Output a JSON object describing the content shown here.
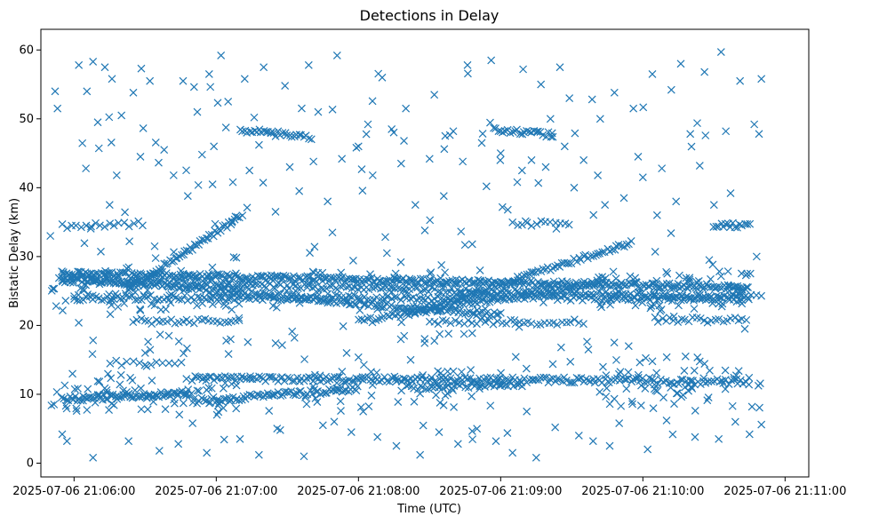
{
  "chart_data": {
    "type": "scatter",
    "title": "Detections in Delay",
    "xlabel": "Time (UTC)",
    "ylabel": "Bistatic Delay (km)",
    "marker": "x",
    "color": "#1f77b4",
    "grid": false,
    "legend": false,
    "x_axis": {
      "type": "time",
      "range": [
        "2025-07-06 21:05:46",
        "2025-07-06 21:11:10"
      ],
      "ticks": [
        "2025-07-06 21:06:00",
        "2025-07-06 21:07:00",
        "2025-07-06 21:08:00",
        "2025-07-06 21:09:00",
        "2025-07-06 21:10:00",
        "2025-07-06 21:11:00"
      ]
    },
    "y_axis": {
      "range": [
        -2,
        63
      ],
      "ticks": [
        0,
        10,
        20,
        30,
        40,
        50,
        60
      ]
    },
    "tracks": [
      {
        "label": "rising",
        "start": [
          "2025-07-06 21:06:22",
          25.0
        ],
        "end": [
          "2025-07-06 21:07:11",
          36.0
        ],
        "step_seconds": 0.8
      },
      {
        "label": "rising",
        "start": [
          "2025-07-06 21:08:20",
          21.5
        ],
        "end": [
          "2025-07-06 21:09:55",
          32.0
        ],
        "step_seconds": 1.0
      },
      {
        "label": "near-flat",
        "start": [
          "2025-07-06 21:05:55",
          27.5
        ],
        "end": [
          "2025-07-06 21:10:45",
          25.5
        ],
        "step_seconds": 0.8
      },
      {
        "label": "near-flat",
        "start": [
          "2025-07-06 21:05:55",
          26.5
        ],
        "end": [
          "2025-07-06 21:10:45",
          24.0
        ],
        "step_seconds": 1.2
      },
      {
        "label": "falling",
        "start": [
          "2025-07-06 21:05:55",
          27.0
        ],
        "end": [
          "2025-07-06 21:09:00",
          21.5
        ],
        "step_seconds": 1.0
      },
      {
        "label": "rising",
        "start": [
          "2025-07-06 21:08:00",
          20.5
        ],
        "end": [
          "2025-07-06 21:09:45",
          26.5
        ],
        "step_seconds": 1.2
      },
      {
        "label": "flat",
        "start": [
          "2025-07-06 21:06:00",
          24.0
        ],
        "end": [
          "2025-07-06 21:10:45",
          24.0
        ],
        "step_seconds": 1.3
      },
      {
        "label": "flat",
        "start": [
          "2025-07-06 21:05:55",
          9.3
        ],
        "end": [
          "2025-07-06 21:06:50",
          10.2
        ],
        "step_seconds": 0.8
      },
      {
        "label": "rising",
        "start": [
          "2025-07-06 21:06:50",
          9.0
        ],
        "end": [
          "2025-07-06 21:08:00",
          10.8
        ],
        "step_seconds": 0.9
      },
      {
        "label": "flat",
        "start": [
          "2025-07-06 21:06:50",
          12.3
        ],
        "end": [
          "2025-07-06 21:10:05",
          12.0
        ],
        "step_seconds": 1.0
      },
      {
        "label": "flat",
        "start": [
          "2025-07-06 21:08:20",
          11.0
        ],
        "end": [
          "2025-07-06 21:09:10",
          11.5
        ],
        "step_seconds": 1.2
      },
      {
        "label": "flat",
        "start": [
          "2025-07-06 21:10:05",
          11.8
        ],
        "end": [
          "2025-07-06 21:10:45",
          11.8
        ],
        "step_seconds": 1.2
      },
      {
        "label": "flat",
        "start": [
          "2025-07-06 21:07:10",
          48.3
        ],
        "end": [
          "2025-07-06 21:07:40",
          47.4
        ],
        "step_seconds": 1.0
      },
      {
        "label": "flat",
        "start": [
          "2025-07-06 21:08:57",
          48.5
        ],
        "end": [
          "2025-07-06 21:09:22",
          47.6
        ],
        "step_seconds": 1.0
      },
      {
        "label": "flat",
        "start": [
          "2025-07-06 21:06:25",
          20.6
        ],
        "end": [
          "2025-07-06 21:07:10",
          20.6
        ],
        "step_seconds": 1.6
      },
      {
        "label": "flat",
        "start": [
          "2025-07-06 21:08:30",
          20.5
        ],
        "end": [
          "2025-07-06 21:09:35",
          20.5
        ],
        "step_seconds": 1.8
      },
      {
        "label": "flat",
        "start": [
          "2025-07-06 21:10:05",
          20.8
        ],
        "end": [
          "2025-07-06 21:10:45",
          20.8
        ],
        "step_seconds": 1.6
      },
      {
        "label": "flat",
        "start": [
          "2025-07-06 21:05:55",
          34.5
        ],
        "end": [
          "2025-07-06 21:06:30",
          34.8
        ],
        "step_seconds": 2.0
      },
      {
        "label": "flat",
        "start": [
          "2025-07-06 21:09:05",
          34.8
        ],
        "end": [
          "2025-07-06 21:09:30",
          34.8
        ],
        "step_seconds": 2.0
      },
      {
        "label": "flat",
        "start": [
          "2025-07-06 21:10:30",
          34.6
        ],
        "end": [
          "2025-07-06 21:10:45",
          34.6
        ],
        "step_seconds": 1.0
      },
      {
        "label": "flat",
        "start": [
          "2025-07-06 21:06:15",
          14.5
        ],
        "end": [
          "2025-07-06 21:06:45",
          14.5
        ],
        "step_seconds": 2.5
      }
    ],
    "scatter_points": [
      [
        "2025-07-06 21:05:50",
        33
      ],
      [
        "2025-07-06 21:05:52",
        54
      ],
      [
        "2025-07-06 21:05:53",
        51.5
      ],
      [
        "2025-07-06 21:05:55",
        4.2
      ],
      [
        "2025-07-06 21:05:57",
        3.2
      ],
      [
        "2025-07-06 21:06:02",
        57.8
      ],
      [
        "2025-07-06 21:06:05",
        42.8
      ],
      [
        "2025-07-06 21:06:08",
        58.3
      ],
      [
        "2025-07-06 21:06:08",
        0.8
      ],
      [
        "2025-07-06 21:06:10",
        49.5
      ],
      [
        "2025-07-06 21:06:13",
        57.5
      ],
      [
        "2025-07-06 21:06:15",
        37.5
      ],
      [
        "2025-07-06 21:06:16",
        55.8
      ],
      [
        "2025-07-06 21:06:18",
        41.8
      ],
      [
        "2025-07-06 21:06:20",
        50.5
      ],
      [
        "2025-07-06 21:06:23",
        3.2
      ],
      [
        "2025-07-06 21:06:25",
        53.8
      ],
      [
        "2025-07-06 21:06:28",
        44.5
      ],
      [
        "2025-07-06 21:06:30",
        16.0
      ],
      [
        "2025-07-06 21:06:32",
        55.5
      ],
      [
        "2025-07-06 21:06:34",
        31.5
      ],
      [
        "2025-07-06 21:06:36",
        1.8
      ],
      [
        "2025-07-06 21:06:38",
        45.5
      ],
      [
        "2025-07-06 21:06:40",
        18.5
      ],
      [
        "2025-07-06 21:06:42",
        41.8
      ],
      [
        "2025-07-06 21:06:44",
        2.8
      ],
      [
        "2025-07-06 21:06:46",
        55.5
      ],
      [
        "2025-07-06 21:06:48",
        38.8
      ],
      [
        "2025-07-06 21:06:50",
        5.8
      ],
      [
        "2025-07-06 21:06:52",
        51.0
      ],
      [
        "2025-07-06 21:06:54",
        44.8
      ],
      [
        "2025-07-06 21:06:56",
        1.5
      ],
      [
        "2025-07-06 21:06:57",
        56.5
      ],
      [
        "2025-07-06 21:06:59",
        46.0
      ],
      [
        "2025-07-06 21:07:02",
        59.2
      ],
      [
        "2025-07-06 21:07:03",
        8.0
      ],
      [
        "2025-07-06 21:07:05",
        52.5
      ],
      [
        "2025-07-06 21:07:07",
        40.8
      ],
      [
        "2025-07-06 21:07:10",
        3.5
      ],
      [
        "2025-07-06 21:07:12",
        55.8
      ],
      [
        "2025-07-06 21:07:14",
        42.5
      ],
      [
        "2025-07-06 21:07:16",
        50.2
      ],
      [
        "2025-07-06 21:07:18",
        1.2
      ],
      [
        "2025-07-06 21:07:20",
        57.5
      ],
      [
        "2025-07-06 21:07:23",
        48.0
      ],
      [
        "2025-07-06 21:07:25",
        36.5
      ],
      [
        "2025-07-06 21:07:27",
        4.8
      ],
      [
        "2025-07-06 21:07:29",
        54.8
      ],
      [
        "2025-07-06 21:07:31",
        43.0
      ],
      [
        "2025-07-06 21:07:33",
        18.2
      ],
      [
        "2025-07-06 21:07:35",
        39.5
      ],
      [
        "2025-07-06 21:07:37",
        1.0
      ],
      [
        "2025-07-06 21:07:39",
        57.8
      ],
      [
        "2025-07-06 21:07:41",
        43.8
      ],
      [
        "2025-07-06 21:07:43",
        51.0
      ],
      [
        "2025-07-06 21:07:45",
        5.5
      ],
      [
        "2025-07-06 21:07:47",
        38.0
      ],
      [
        "2025-07-06 21:07:49",
        33.5
      ],
      [
        "2025-07-06 21:07:51",
        59.2
      ],
      [
        "2025-07-06 21:07:53",
        44.2
      ],
      [
        "2025-07-06 21:07:55",
        16.0
      ],
      [
        "2025-07-06 21:07:57",
        4.5
      ],
      [
        "2025-07-06 21:08:00",
        46.0
      ],
      [
        "2025-07-06 21:08:02",
        7.5
      ],
      [
        "2025-07-06 21:08:04",
        49.2
      ],
      [
        "2025-07-06 21:08:06",
        41.8
      ],
      [
        "2025-07-06 21:08:08",
        3.8
      ],
      [
        "2025-07-06 21:08:10",
        56.0
      ],
      [
        "2025-07-06 21:08:12",
        30.5
      ],
      [
        "2025-07-06 21:08:14",
        48.5
      ],
      [
        "2025-07-06 21:08:16",
        2.5
      ],
      [
        "2025-07-06 21:08:18",
        43.5
      ],
      [
        "2025-07-06 21:08:20",
        51.5
      ],
      [
        "2025-07-06 21:08:22",
        15.0
      ],
      [
        "2025-07-06 21:08:24",
        37.5
      ],
      [
        "2025-07-06 21:08:26",
        1.2
      ],
      [
        "2025-07-06 21:08:28",
        33.8
      ],
      [
        "2025-07-06 21:08:30",
        44.2
      ],
      [
        "2025-07-06 21:08:32",
        53.5
      ],
      [
        "2025-07-06 21:08:34",
        4.5
      ],
      [
        "2025-07-06 21:08:36",
        38.8
      ],
      [
        "2025-07-06 21:08:38",
        18.8
      ],
      [
        "2025-07-06 21:08:40",
        48.2
      ],
      [
        "2025-07-06 21:08:42",
        2.8
      ],
      [
        "2025-07-06 21:08:44",
        43.8
      ],
      [
        "2025-07-06 21:08:46",
        57.8
      ],
      [
        "2025-07-06 21:08:48",
        31.8
      ],
      [
        "2025-07-06 21:08:50",
        5.0
      ],
      [
        "2025-07-06 21:08:52",
        46.5
      ],
      [
        "2025-07-06 21:08:54",
        40.2
      ],
      [
        "2025-07-06 21:08:56",
        58.5
      ],
      [
        "2025-07-06 21:08:58",
        3.2
      ],
      [
        "2025-07-06 21:09:00",
        45.0
      ],
      [
        "2025-07-06 21:09:03",
        36.8
      ],
      [
        "2025-07-06 21:09:05",
        1.5
      ],
      [
        "2025-07-06 21:09:07",
        40.8
      ],
      [
        "2025-07-06 21:09:09",
        42.5
      ],
      [
        "2025-07-06 21:09:11",
        7.5
      ],
      [
        "2025-07-06 21:09:13",
        44.0
      ],
      [
        "2025-07-06 21:09:15",
        0.8
      ],
      [
        "2025-07-06 21:09:17",
        55.0
      ],
      [
        "2025-07-06 21:09:19",
        43.0
      ],
      [
        "2025-07-06 21:09:21",
        50.0
      ],
      [
        "2025-07-06 21:09:23",
        5.2
      ],
      [
        "2025-07-06 21:09:25",
        57.5
      ],
      [
        "2025-07-06 21:09:27",
        46.0
      ],
      [
        "2025-07-06 21:09:29",
        53.0
      ],
      [
        "2025-07-06 21:09:31",
        40.0
      ],
      [
        "2025-07-06 21:09:33",
        4.0
      ],
      [
        "2025-07-06 21:09:35",
        44.0
      ],
      [
        "2025-07-06 21:09:37",
        16.5
      ],
      [
        "2025-07-06 21:09:39",
        3.2
      ],
      [
        "2025-07-06 21:09:42",
        50.0
      ],
      [
        "2025-07-06 21:09:44",
        37.5
      ],
      [
        "2025-07-06 21:09:46",
        2.5
      ],
      [
        "2025-07-06 21:09:48",
        53.8
      ],
      [
        "2025-07-06 21:09:50",
        5.8
      ],
      [
        "2025-07-06 21:09:52",
        38.5
      ],
      [
        "2025-07-06 21:09:54",
        17.0
      ],
      [
        "2025-07-06 21:09:56",
        51.5
      ],
      [
        "2025-07-06 21:09:58",
        44.5
      ],
      [
        "2025-07-06 21:10:00",
        41.5
      ],
      [
        "2025-07-06 21:10:02",
        2.0
      ],
      [
        "2025-07-06 21:10:04",
        56.5
      ],
      [
        "2025-07-06 21:10:06",
        36.0
      ],
      [
        "2025-07-06 21:10:08",
        42.8
      ],
      [
        "2025-07-06 21:10:10",
        6.2
      ],
      [
        "2025-07-06 21:10:12",
        54.2
      ],
      [
        "2025-07-06 21:10:14",
        38.0
      ],
      [
        "2025-07-06 21:10:16",
        58.0
      ],
      [
        "2025-07-06 21:10:18",
        15.5
      ],
      [
        "2025-07-06 21:10:20",
        47.8
      ],
      [
        "2025-07-06 21:10:22",
        3.8
      ],
      [
        "2025-07-06 21:10:24",
        43.2
      ],
      [
        "2025-07-06 21:10:26",
        56.8
      ],
      [
        "2025-07-06 21:10:28",
        29.5
      ],
      [
        "2025-07-06 21:10:30",
        37.5
      ],
      [
        "2025-07-06 21:10:32",
        3.5
      ],
      [
        "2025-07-06 21:10:33",
        59.7
      ],
      [
        "2025-07-06 21:10:35",
        48.2
      ],
      [
        "2025-07-06 21:10:37",
        39.2
      ],
      [
        "2025-07-06 21:10:39",
        6.0
      ],
      [
        "2025-07-06 21:10:41",
        55.5
      ],
      [
        "2025-07-06 21:10:43",
        19.5
      ],
      [
        "2025-07-06 21:10:45",
        4.2
      ],
      [
        "2025-07-06 21:10:47",
        49.2
      ],
      [
        "2025-07-06 21:10:48",
        30.0
      ],
      [
        "2025-07-06 21:10:49",
        47.8
      ],
      [
        "2025-07-06 21:10:50",
        55.8
      ],
      [
        "2025-07-06 21:10:50",
        5.6
      ]
    ],
    "clusters": [
      {
        "center": [
          "2025-07-06 21:06:30",
          25.0
        ],
        "spread_seconds": 40,
        "spread_km": 3.0,
        "count": 80
      },
      {
        "center": [
          "2025-07-06 21:08:00",
          25.0
        ],
        "spread_seconds": 60,
        "spread_km": 3.0,
        "count": 60
      },
      {
        "center": [
          "2025-07-06 21:10:15",
          25.0
        ],
        "spread_seconds": 35,
        "spread_km": 3.0,
        "count": 70
      },
      {
        "center": [
          "2025-07-06 21:06:30",
          10.0
        ],
        "spread_seconds": 40,
        "spread_km": 3.0,
        "count": 70
      },
      {
        "center": [
          "2025-07-06 21:08:15",
          10.5
        ],
        "spread_seconds": 45,
        "spread_km": 3.0,
        "count": 40
      },
      {
        "center": [
          "2025-07-06 21:10:15",
          10.5
        ],
        "spread_seconds": 35,
        "spread_km": 3.0,
        "count": 50
      },
      {
        "center": [
          "2025-07-06 21:08:10",
          30.0
        ],
        "spread_seconds": 140,
        "spread_km": 28.0,
        "count": 120
      },
      {
        "center": [
          "2025-07-06 21:08:10",
          16.0
        ],
        "spread_seconds": 140,
        "spread_km": 3.0,
        "count": 40
      }
    ]
  }
}
